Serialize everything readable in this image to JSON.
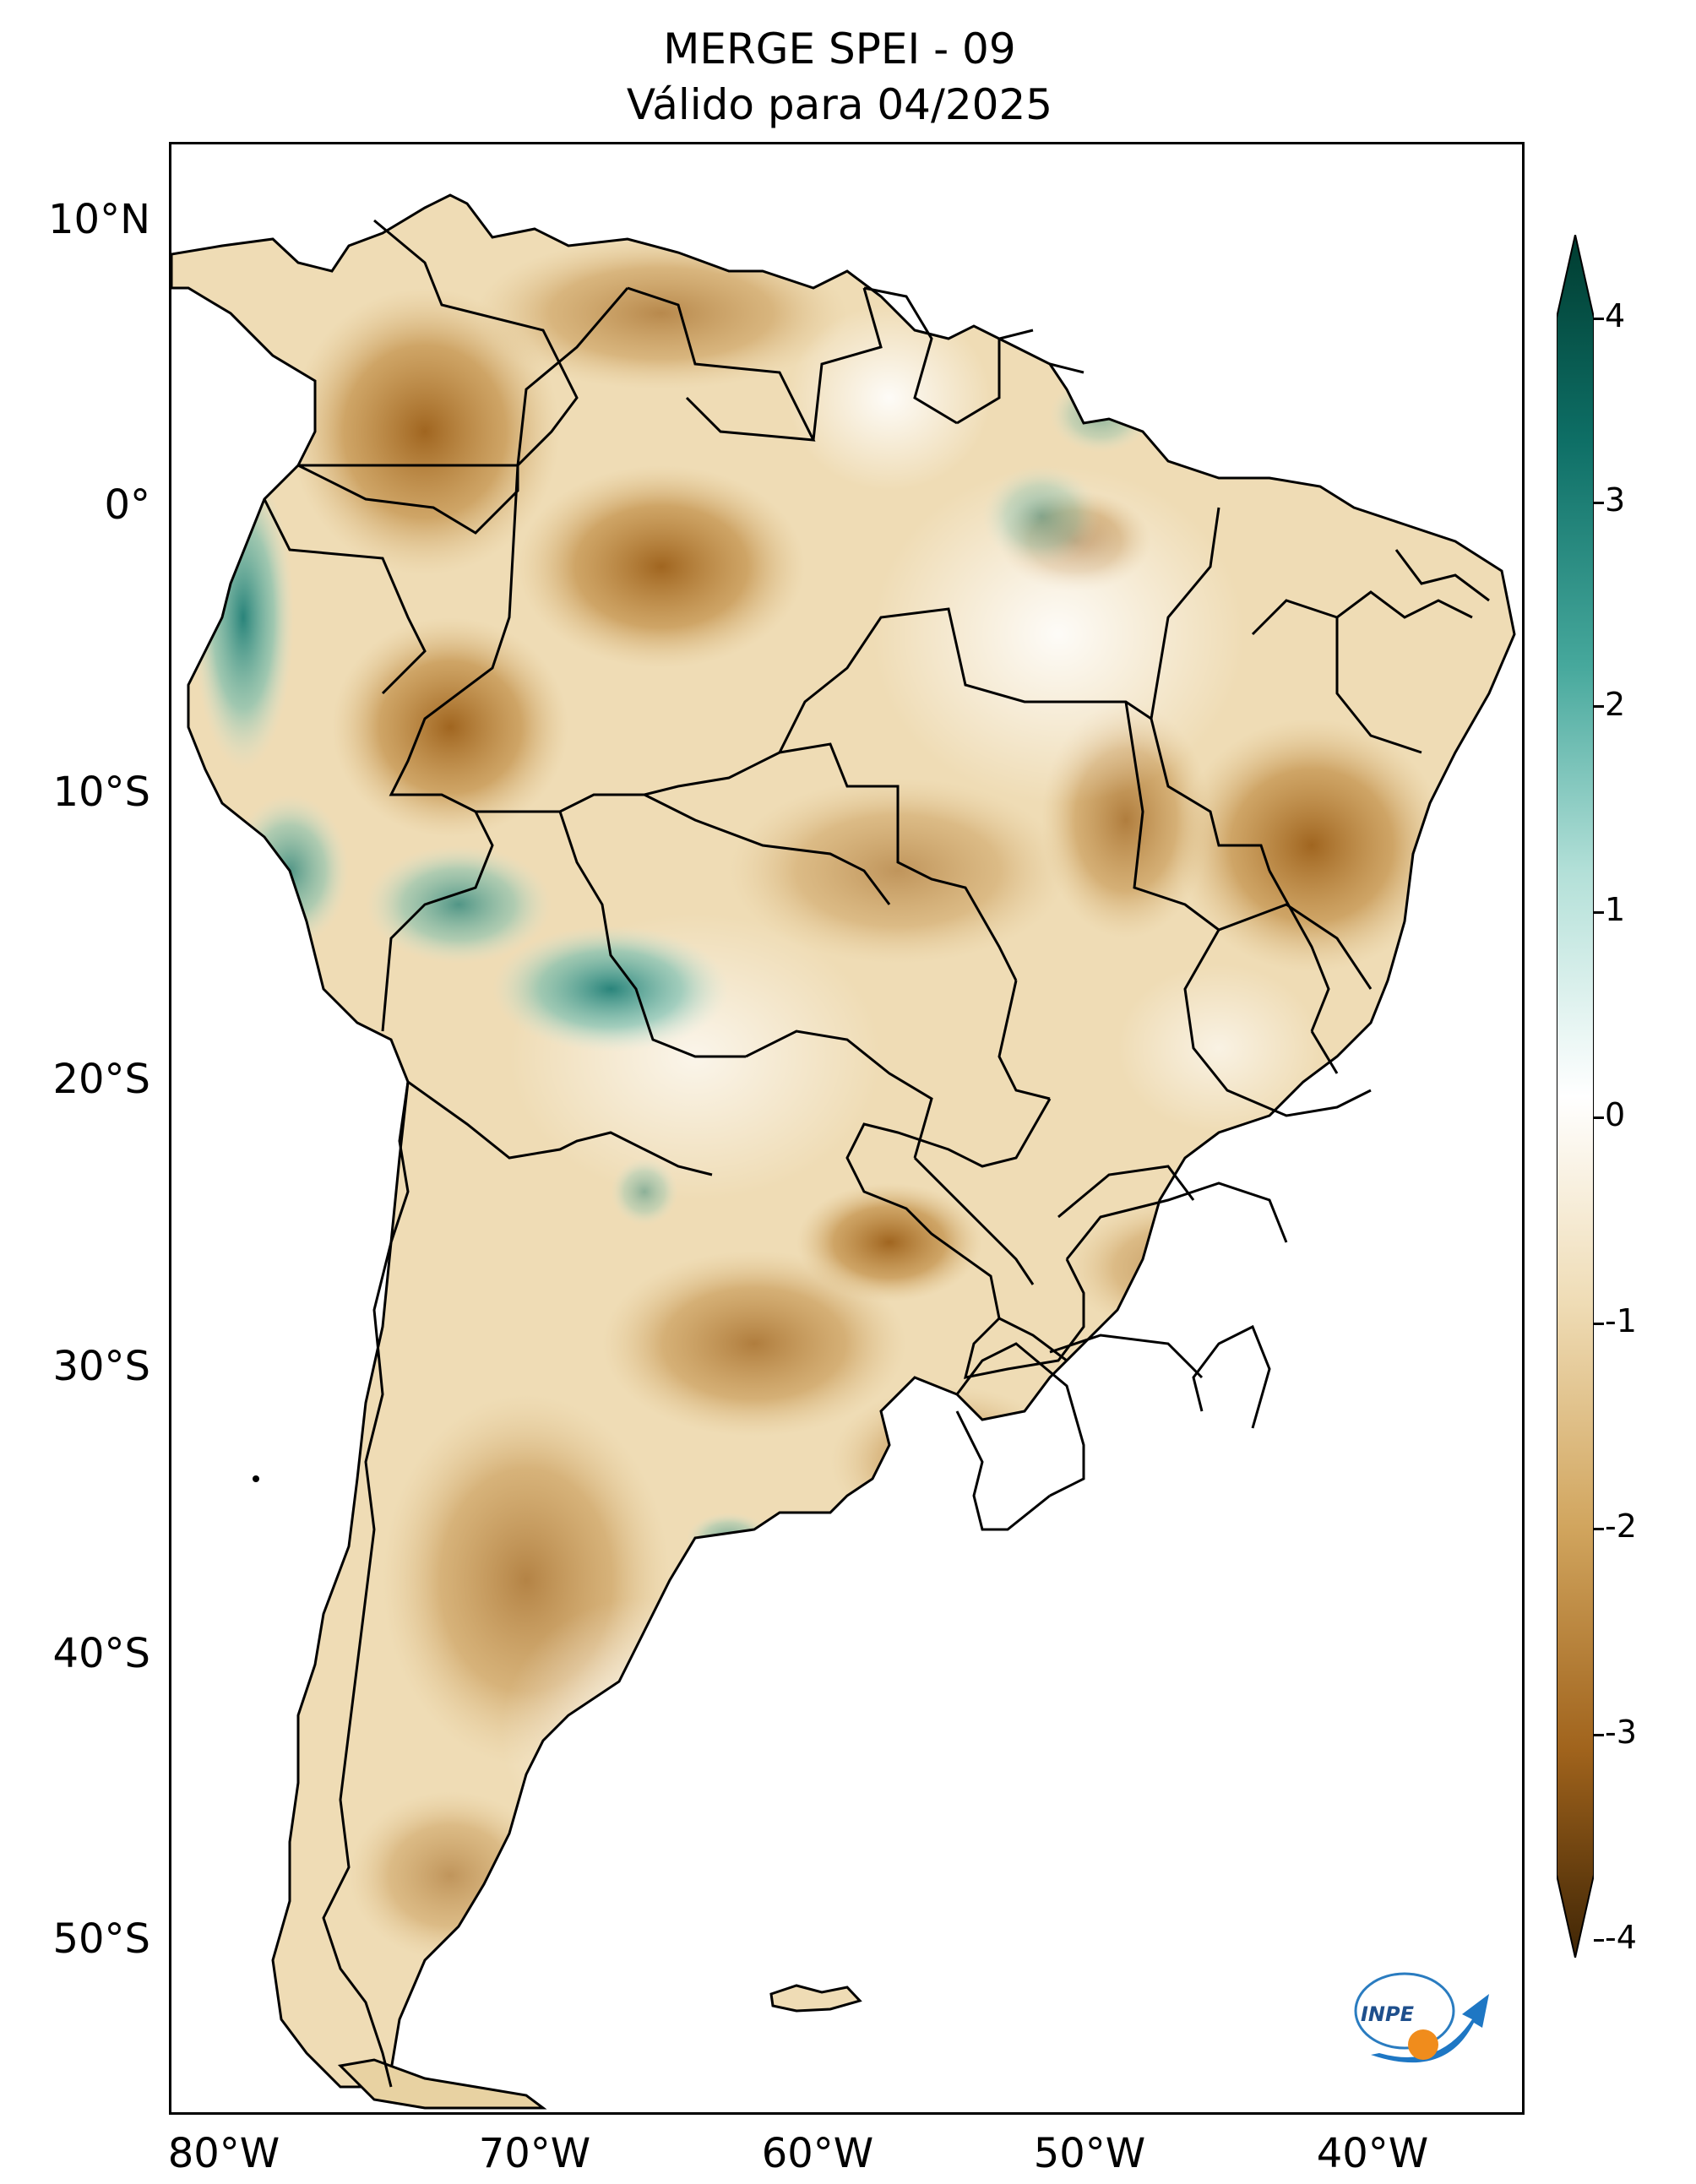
{
  "title": {
    "line1": "MERGE   SPEI - 09",
    "line2": "Válido para 04/2025"
  },
  "axes": {
    "lat_ticks": [
      "10°N",
      "0°",
      "10°S",
      "20°S",
      "30°S",
      "40°S",
      "50°S"
    ],
    "lon_ticks": [
      "80°W",
      "70°W",
      "60°W",
      "50°W",
      "40°W"
    ]
  },
  "colorbar": {
    "ticks": [
      "4",
      "3",
      "2",
      "1",
      "0",
      "-1",
      "-2",
      "-3",
      "-4"
    ],
    "min": -4,
    "max": 4,
    "extend": "both",
    "colors": {
      "dry_extreme": "#3f2505",
      "dry": "#a0631c",
      "neutral": "#ffffff",
      "wet": "#2f9a8e",
      "wet_extreme": "#003c30"
    }
  },
  "logo": {
    "text": "INPE"
  },
  "colors": {
    "land_dry": "#d9b77d",
    "land_light": "#f3e4c2",
    "ocean": "#ffffff",
    "border": "#000000"
  }
}
